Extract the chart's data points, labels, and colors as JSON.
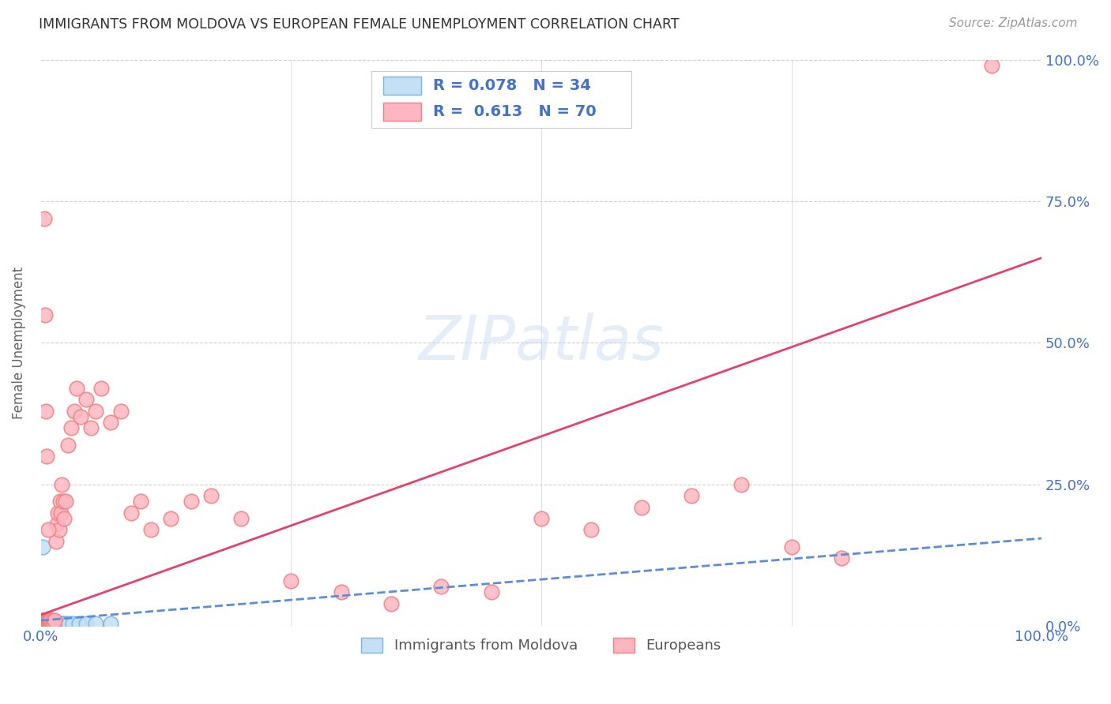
{
  "title": "IMMIGRANTS FROM MOLDOVA VS EUROPEAN FEMALE UNEMPLOYMENT CORRELATION CHART",
  "source": "Source: ZipAtlas.com",
  "ylabel": "Female Unemployment",
  "blue_color": "#7ab4e0",
  "blue_fill": "#c5dff5",
  "pink_color": "#f08080",
  "pink_fill": "#ffb6c1",
  "trendline_blue_color": "#5b8dd9",
  "trendline_pink_color": "#e8406a",
  "axis_color": "#4472c4",
  "blue_scatter_x": [
    0.001,
    0.002,
    0.002,
    0.003,
    0.003,
    0.003,
    0.004,
    0.004,
    0.005,
    0.005,
    0.006,
    0.006,
    0.007,
    0.007,
    0.008,
    0.008,
    0.009,
    0.009,
    0.01,
    0.01,
    0.012,
    0.013,
    0.015,
    0.017,
    0.02,
    0.022,
    0.025,
    0.028,
    0.032,
    0.038,
    0.045,
    0.055,
    0.07,
    0.002
  ],
  "blue_scatter_y": [
    0.005,
    0.005,
    0.01,
    0.005,
    0.008,
    0.01,
    0.005,
    0.008,
    0.005,
    0.01,
    0.005,
    0.008,
    0.005,
    0.008,
    0.005,
    0.008,
    0.005,
    0.008,
    0.005,
    0.008,
    0.005,
    0.005,
    0.005,
    0.005,
    0.005,
    0.005,
    0.005,
    0.005,
    0.005,
    0.005,
    0.005,
    0.005,
    0.005,
    0.14
  ],
  "pink_scatter_x": [
    0.001,
    0.001,
    0.002,
    0.002,
    0.003,
    0.003,
    0.004,
    0.004,
    0.005,
    0.005,
    0.006,
    0.006,
    0.007,
    0.007,
    0.008,
    0.008,
    0.009,
    0.009,
    0.01,
    0.01,
    0.011,
    0.012,
    0.013,
    0.014,
    0.015,
    0.016,
    0.017,
    0.018,
    0.019,
    0.02,
    0.021,
    0.022,
    0.023,
    0.025,
    0.027,
    0.03,
    0.033,
    0.036,
    0.04,
    0.045,
    0.05,
    0.055,
    0.06,
    0.07,
    0.08,
    0.09,
    0.1,
    0.11,
    0.13,
    0.15,
    0.17,
    0.2,
    0.25,
    0.3,
    0.35,
    0.4,
    0.45,
    0.5,
    0.55,
    0.6,
    0.65,
    0.7,
    0.75,
    0.8,
    0.003,
    0.004,
    0.005,
    0.006,
    0.007,
    0.95
  ],
  "pink_scatter_y": [
    0.005,
    0.01,
    0.005,
    0.01,
    0.005,
    0.01,
    0.005,
    0.01,
    0.005,
    0.01,
    0.005,
    0.01,
    0.005,
    0.01,
    0.005,
    0.01,
    0.005,
    0.01,
    0.005,
    0.01,
    0.005,
    0.01,
    0.005,
    0.01,
    0.15,
    0.18,
    0.2,
    0.17,
    0.22,
    0.2,
    0.25,
    0.22,
    0.19,
    0.22,
    0.32,
    0.35,
    0.38,
    0.42,
    0.37,
    0.4,
    0.35,
    0.38,
    0.42,
    0.36,
    0.38,
    0.2,
    0.22,
    0.17,
    0.19,
    0.22,
    0.23,
    0.19,
    0.08,
    0.06,
    0.04,
    0.07,
    0.06,
    0.19,
    0.17,
    0.21,
    0.23,
    0.25,
    0.14,
    0.12,
    0.72,
    0.55,
    0.38,
    0.3,
    0.17,
    0.99
  ]
}
